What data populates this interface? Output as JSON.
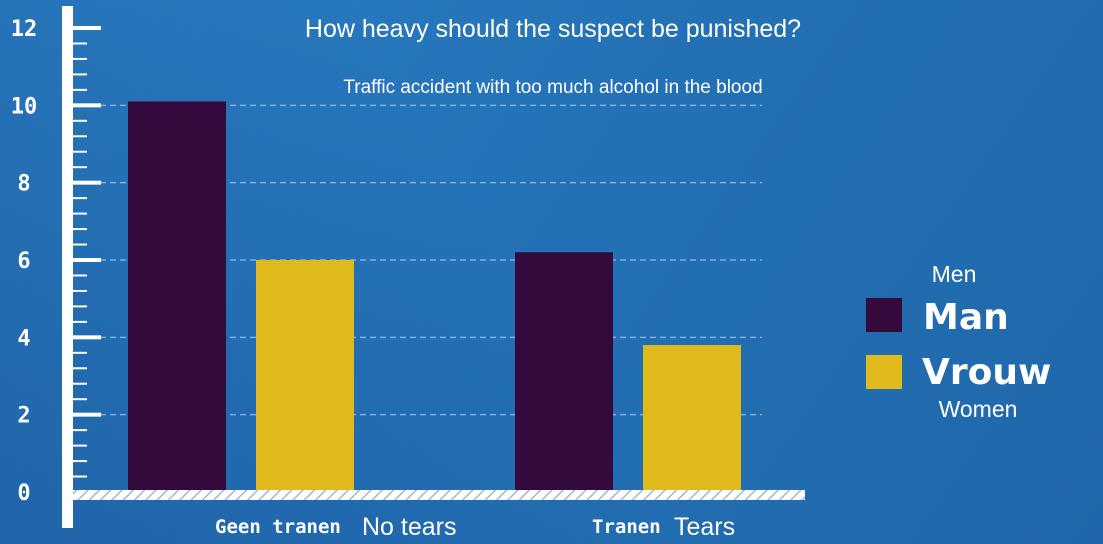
{
  "chart_data": {
    "type": "bar",
    "title": "How heavy should the suspect be punished?",
    "subtitle": "Traffic accident with too much alcohol in the blood",
    "categories": [
      "Geen tranen",
      "Tranen"
    ],
    "category_translations": [
      "No tears",
      "Tears"
    ],
    "y_ticks": [
      "0",
      "2",
      "4",
      "6",
      "8",
      "10",
      "12"
    ],
    "ylim": [
      0,
      12
    ],
    "grid": true,
    "legend_position": "right",
    "series": [
      {
        "name": "Man",
        "translation": "Men",
        "color": "#330a3b",
        "values": [
          10.1,
          6.2
        ]
      },
      {
        "name": "Vrouw",
        "translation": "Women",
        "color": "#e0ba1c",
        "values": [
          6.0,
          3.8
        ]
      }
    ]
  }
}
